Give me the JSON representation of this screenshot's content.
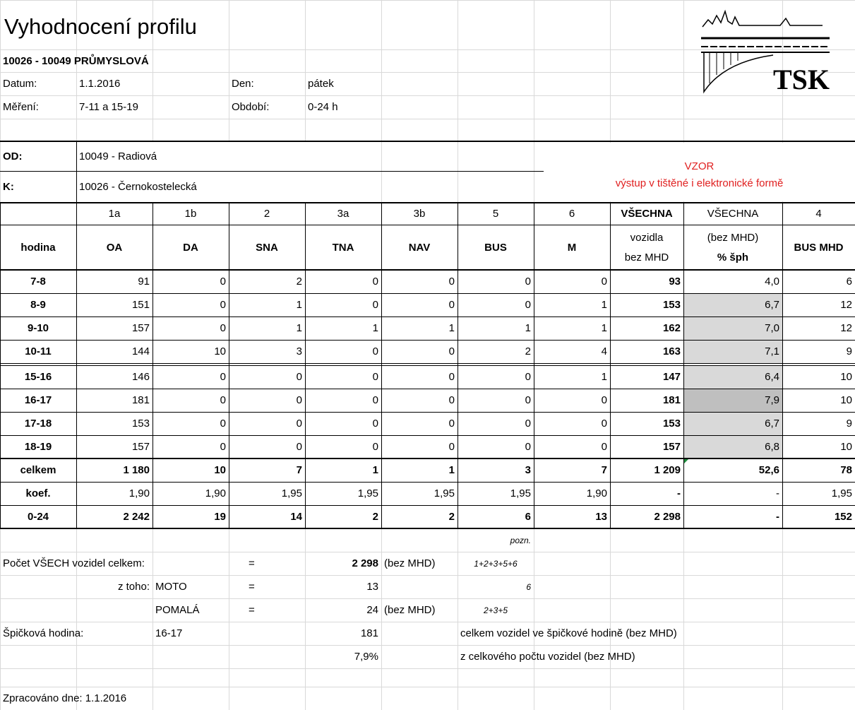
{
  "header": {
    "title": "Vyhodnocení profilu",
    "profile": "10026 - 10049 PRŮMYSLOVÁ",
    "date_label": "Datum:",
    "date": "1.1.2016",
    "day_label": "Den:",
    "day": "pátek",
    "measurement_label": "Měření:",
    "measurement": "7-11 a 15-19",
    "period_label": "Období:",
    "period": "0-24 h",
    "logo": "TSK"
  },
  "route": {
    "from_label": "OD:",
    "from": "10049 - Radiová",
    "to_label": "K:",
    "to": "10026 - Černokostelecká",
    "stamp": "VZOR",
    "stamp_note": "výstup v tištěné i elektronické formě"
  },
  "table": {
    "codes": [
      "1a",
      "1b",
      "2",
      "3a",
      "3b",
      "5",
      "6",
      "VŠECHNA",
      "VŠECHNA",
      "4"
    ],
    "hour_label": "hodina",
    "columns": [
      "OA",
      "DA",
      "SNA",
      "TNA",
      "NAV",
      "BUS",
      "M",
      [
        "vozidla",
        "bez MHD"
      ],
      [
        "(bez MHD)",
        "% šph"
      ],
      "BUS MHD"
    ],
    "rows": [
      [
        "7-8",
        "91",
        "0",
        "2",
        "0",
        "0",
        "0",
        "0",
        "93",
        "4,0",
        "6"
      ],
      [
        "8-9",
        "151",
        "0",
        "1",
        "0",
        "0",
        "0",
        "1",
        "153",
        "6,7",
        "12"
      ],
      [
        "9-10",
        "157",
        "0",
        "1",
        "1",
        "1",
        "1",
        "1",
        "162",
        "7,0",
        "12"
      ],
      [
        "10-11",
        "144",
        "10",
        "3",
        "0",
        "0",
        "2",
        "4",
        "163",
        "7,1",
        "9"
      ],
      [
        "15-16",
        "146",
        "0",
        "0",
        "0",
        "0",
        "0",
        "1",
        "147",
        "6,4",
        "10"
      ],
      [
        "16-17",
        "181",
        "0",
        "0",
        "0",
        "0",
        "0",
        "0",
        "181",
        "7,9",
        "10"
      ],
      [
        "17-18",
        "153",
        "0",
        "0",
        "0",
        "0",
        "0",
        "0",
        "153",
        "6,7",
        "9"
      ],
      [
        "18-19",
        "157",
        "0",
        "0",
        "0",
        "0",
        "0",
        "0",
        "157",
        "6,8",
        "10"
      ]
    ],
    "totals": [
      [
        "celkem",
        "1 180",
        "10",
        "7",
        "1",
        "1",
        "3",
        "7",
        "1 209",
        "52,6",
        "78"
      ],
      [
        "koef.",
        "1,90",
        "1,90",
        "1,95",
        "1,95",
        "1,95",
        "1,95",
        "1,90",
        "-",
        "-",
        "1,95"
      ],
      [
        "0-24",
        "2 242",
        "19",
        "14",
        "2",
        "2",
        "6",
        "13",
        "2 298",
        "-",
        "152"
      ]
    ]
  },
  "summary": {
    "note": "pozn.",
    "total": {
      "label": "Počet VŠECH vozidel celkem:",
      "eq": "=",
      "value": "2 298",
      "qualifier": "(bez MHD)",
      "formula": "1+2+3+5+6"
    },
    "moto": {
      "prefix": "z toho:",
      "label": "MOTO",
      "eq": "=",
      "value": "13",
      "formula": "6"
    },
    "slow": {
      "label": "POMALÁ",
      "eq": "=",
      "value": "24",
      "qualifier": "(bez MHD)",
      "formula": "2+3+5"
    },
    "peak": {
      "label": "Špičková hodina:",
      "hour": "16-17",
      "value": "181",
      "description": "celkem vozidel ve špičkové hodině (bez MHD)"
    },
    "peak_share": {
      "value": "7,9%",
      "description": "z celkového počtu vozidel (bez MHD)"
    },
    "processed": "Zpracováno dne: 1.1.2016"
  }
}
